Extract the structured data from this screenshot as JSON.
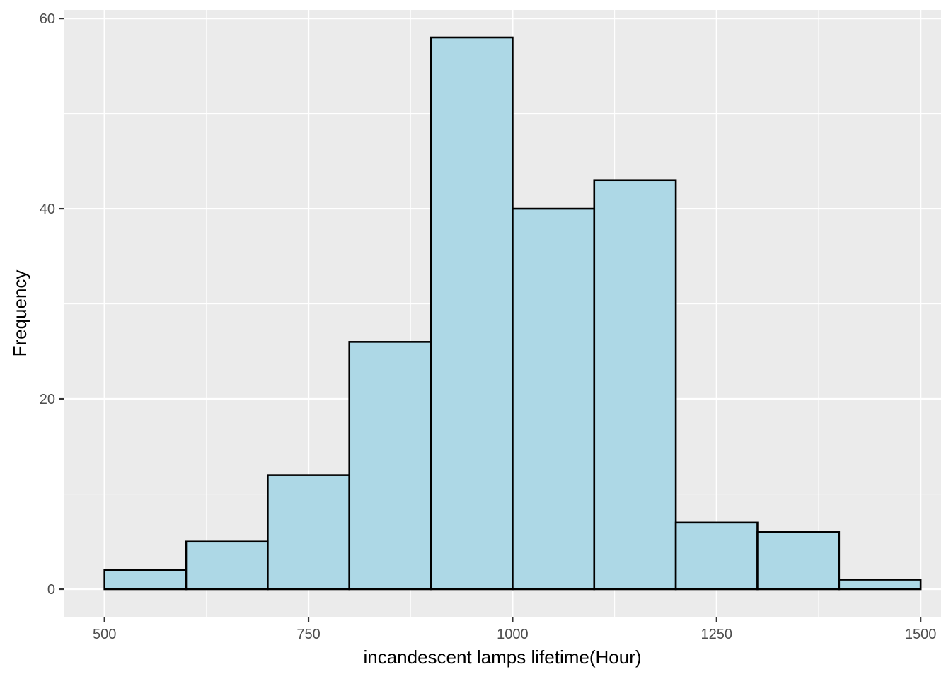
{
  "chart_data": {
    "type": "bar",
    "subtype": "histogram",
    "title": "",
    "xlabel": "incandescent lamps lifetime(Hour)",
    "ylabel": "Frequency",
    "bin_edges": [
      500,
      600,
      700,
      800,
      900,
      1000,
      1100,
      1200,
      1300,
      1400,
      1500
    ],
    "values": [
      2,
      5,
      12,
      26,
      58,
      40,
      43,
      7,
      6,
      1
    ],
    "xlim": [
      450,
      1525
    ],
    "ylim": [
      -2.9,
      60.9
    ],
    "x_ticks": [
      500,
      750,
      1000,
      1250,
      1500
    ],
    "x_tick_labels": [
      "500",
      "750",
      "1000",
      "1250",
      "1500"
    ],
    "x_minor_ticks": [
      625,
      875,
      1125,
      1375
    ],
    "y_ticks": [
      0,
      20,
      40,
      60
    ],
    "y_tick_labels": [
      "0",
      "20",
      "40",
      "60"
    ],
    "y_minor_ticks": [
      10,
      30,
      50
    ],
    "grid": true,
    "legend": "none",
    "colors": {
      "panel_background": "#ebebeb",
      "grid_line": "#ffffff",
      "bar_fill": "#add8e6",
      "bar_outline": "#000000",
      "tick_mark": "#333333",
      "tick_label": "#4d4d4d",
      "axis_title": "#000000"
    }
  }
}
